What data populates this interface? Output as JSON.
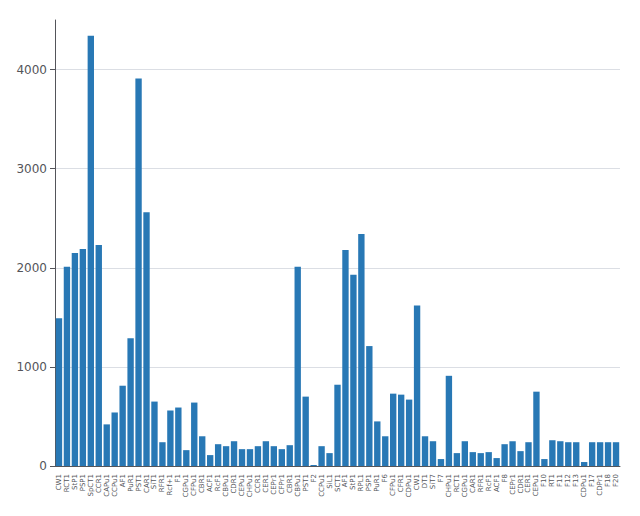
{
  "chart_data": {
    "type": "bar",
    "categories": [
      "CW1",
      "RCT1",
      "StP1",
      "PSP1",
      "SpCT1",
      "CCR1",
      "CAPu1",
      "CCPu1",
      "AF1",
      "PuR1",
      "PST1",
      "CAR1",
      "SiT1",
      "RFR1",
      "Rcf+1",
      "F1",
      "CGPu1",
      "CFPu1",
      "CBR1",
      "ACF1",
      "RcF1",
      "CBPu1",
      "CDR1",
      "CEPu1",
      "CHPu1",
      "CCR1",
      "CER1",
      "CEPr1",
      "CFPr1",
      "CBR1",
      "CBPu1",
      "PST1",
      "F2",
      "CCPu1",
      "SiL1",
      "SCT1",
      "AF1",
      "StP1",
      "RPL1",
      "PSP1",
      "PuR1",
      "F6",
      "CFPu1",
      "CFR1",
      "CDPu1",
      "CW1",
      "DT1",
      "SiT7",
      "F7",
      "CHPu1",
      "RCT1",
      "CGPu1",
      "CAR1",
      "RFR1",
      "RcF1",
      "ACF1",
      "F8",
      "CEPr1",
      "CDR1",
      "CER1",
      "CEPu1",
      "F10",
      "RT1",
      "F11",
      "F12",
      "F13",
      "CDPu1",
      "F17",
      "CDPr1",
      "F18",
      "F20"
    ],
    "values": [
      1490,
      2010,
      2150,
      2190,
      4340,
      2230,
      420,
      540,
      810,
      1290,
      3910,
      2560,
      650,
      240,
      560,
      590,
      160,
      640,
      300,
      110,
      220,
      200,
      250,
      170,
      170,
      200,
      250,
      200,
      170,
      210,
      2010,
      700,
      10,
      200,
      130,
      820,
      2180,
      1930,
      2340,
      1210,
      450,
      300,
      730,
      720,
      670,
      1620,
      300,
      250,
      70,
      910,
      130,
      250,
      140,
      130,
      140,
      80,
      220,
      250,
      150,
      240,
      750,
      70,
      260,
      250,
      240,
      240,
      40,
      240,
      240,
      240,
      240
    ],
    "color": "#2878b5",
    "ylim": [
      0,
      4500
    ],
    "yticks": [
      0,
      1000,
      2000,
      3000,
      4000
    ],
    "grid": true
  }
}
